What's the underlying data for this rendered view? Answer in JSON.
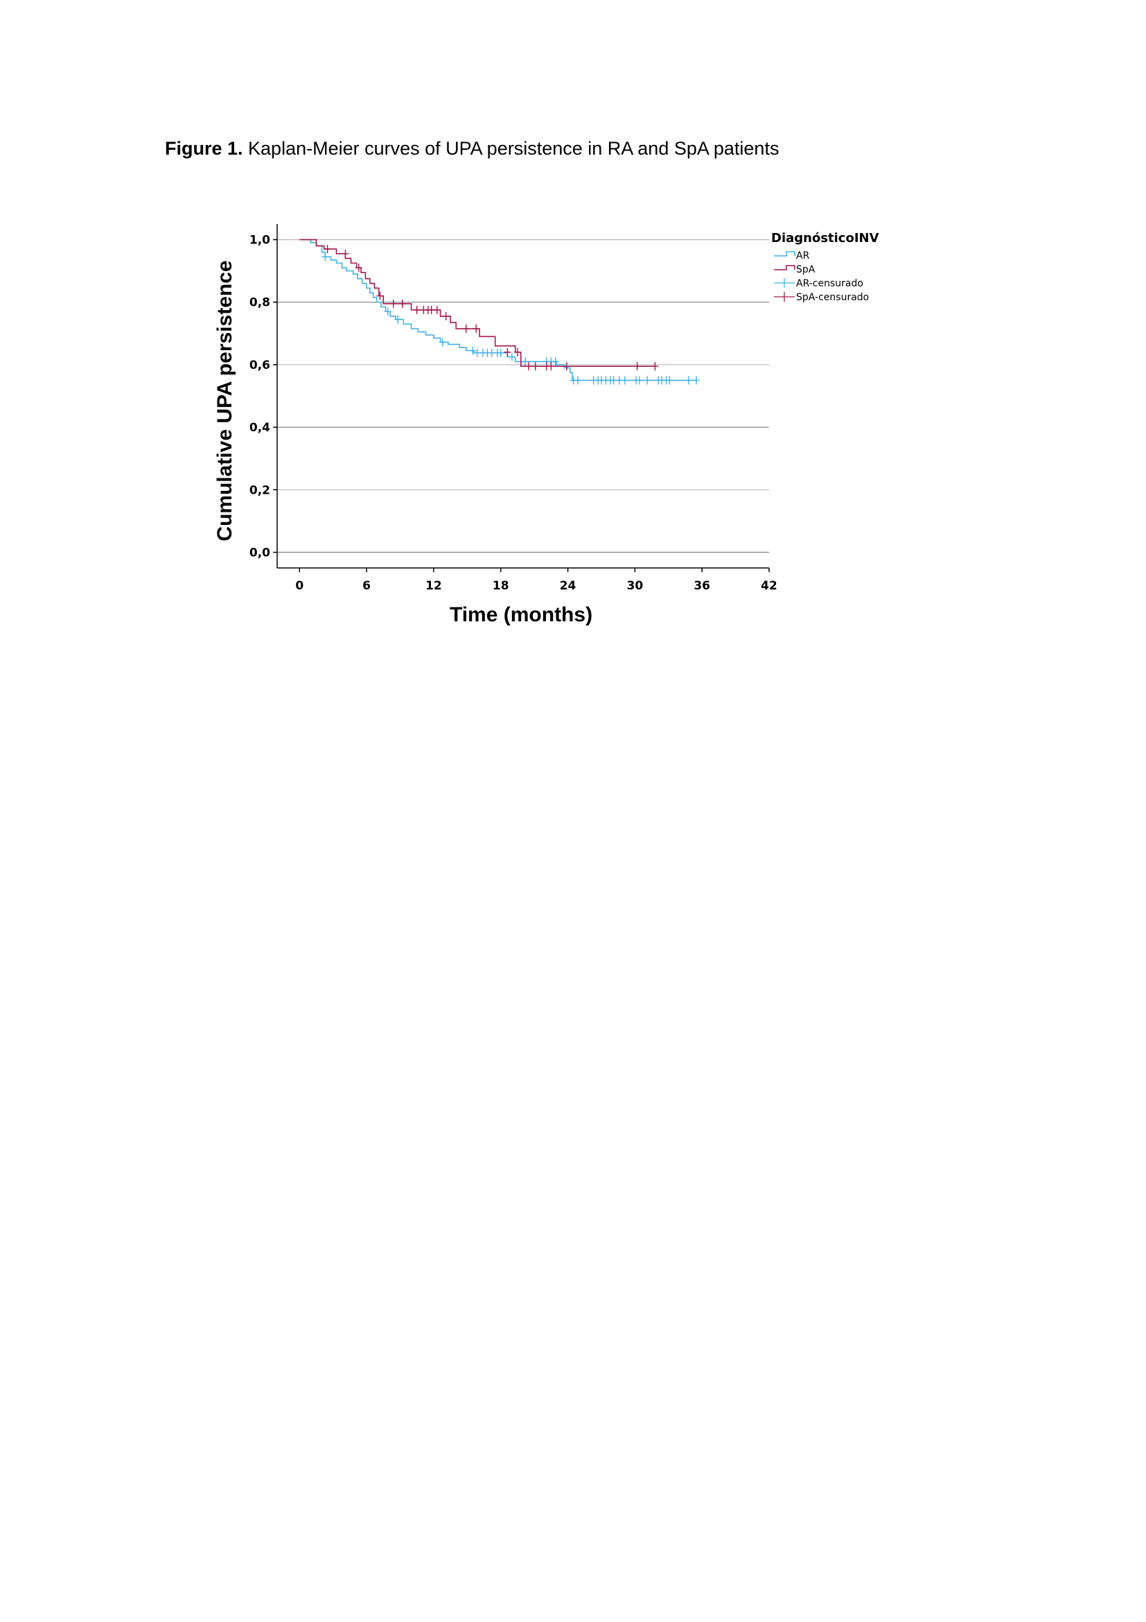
{
  "caption": {
    "label": "Figure 1.",
    "text": " Kaplan-Meier curves of UPA persistence in RA and SpA patients"
  },
  "chart_data": {
    "type": "line",
    "subtype": "kaplan-meier",
    "xlabel": "Time (months)",
    "ylabel": "Cumulative UPA persistence",
    "xlim": [
      -2,
      42
    ],
    "ylim": [
      -0.05,
      1.05
    ],
    "x_ticks": [
      0,
      6,
      12,
      18,
      24,
      30,
      36,
      42
    ],
    "x_tick_labels": [
      "0",
      "6",
      "12",
      "18",
      "24",
      "30",
      "36",
      "42"
    ],
    "y_ticks": [
      0.0,
      0.2,
      0.4,
      0.6,
      0.8,
      1.0
    ],
    "y_tick_labels": [
      "0,0",
      "0,2",
      "0,4",
      "0,6",
      "0,8",
      "1,0"
    ],
    "grid": "horizontal",
    "legend": {
      "title": "DiagnósticoINV",
      "placement": "top-right",
      "entries": [
        "AR",
        "SpA",
        "AR-censurado",
        "SpA-censurado"
      ]
    },
    "colors": {
      "AR": "#42b0e8",
      "SpA": "#a3174f"
    },
    "series": [
      {
        "name": "AR",
        "color": "#42b0e8",
        "steps": [
          [
            0,
            1.0
          ],
          [
            1.0,
            0.99
          ],
          [
            1.5,
            0.98
          ],
          [
            2.0,
            0.96
          ],
          [
            2.3,
            0.945
          ],
          [
            2.8,
            0.935
          ],
          [
            3.3,
            0.925
          ],
          [
            3.8,
            0.91
          ],
          [
            4.2,
            0.9
          ],
          [
            4.8,
            0.89
          ],
          [
            5.2,
            0.875
          ],
          [
            5.6,
            0.86
          ],
          [
            6.0,
            0.845
          ],
          [
            6.3,
            0.83
          ],
          [
            6.6,
            0.815
          ],
          [
            6.9,
            0.8
          ],
          [
            7.3,
            0.785
          ],
          [
            7.7,
            0.77
          ],
          [
            8.1,
            0.755
          ],
          [
            8.6,
            0.745
          ],
          [
            9.3,
            0.73
          ],
          [
            10.0,
            0.715
          ],
          [
            10.6,
            0.705
          ],
          [
            11.3,
            0.695
          ],
          [
            12.0,
            0.685
          ],
          [
            12.6,
            0.672
          ],
          [
            13.3,
            0.665
          ],
          [
            14.3,
            0.655
          ],
          [
            14.9,
            0.645
          ],
          [
            15.6,
            0.638
          ],
          [
            18.6,
            0.625
          ],
          [
            19.3,
            0.61
          ],
          [
            23.0,
            0.6
          ],
          [
            23.7,
            0.59
          ],
          [
            24.2,
            0.575
          ],
          [
            24.4,
            0.55
          ],
          [
            35.5,
            0.55
          ]
        ],
        "censored": [
          [
            2.3,
            0.945
          ],
          [
            7.9,
            0.77
          ],
          [
            8.8,
            0.745
          ],
          [
            12.8,
            0.672
          ],
          [
            15.5,
            0.645
          ],
          [
            15.9,
            0.638
          ],
          [
            16.4,
            0.638
          ],
          [
            16.8,
            0.638
          ],
          [
            17.2,
            0.638
          ],
          [
            17.7,
            0.638
          ],
          [
            18.0,
            0.638
          ],
          [
            19.0,
            0.625
          ],
          [
            20.2,
            0.61
          ],
          [
            22.1,
            0.61
          ],
          [
            22.5,
            0.61
          ],
          [
            22.9,
            0.61
          ],
          [
            24.5,
            0.55
          ],
          [
            24.9,
            0.55
          ],
          [
            26.3,
            0.55
          ],
          [
            26.7,
            0.55
          ],
          [
            27.0,
            0.55
          ],
          [
            27.4,
            0.55
          ],
          [
            27.8,
            0.55
          ],
          [
            28.1,
            0.55
          ],
          [
            28.6,
            0.55
          ],
          [
            29.1,
            0.55
          ],
          [
            30.1,
            0.55
          ],
          [
            30.4,
            0.55
          ],
          [
            31.1,
            0.55
          ],
          [
            32.1,
            0.55
          ],
          [
            32.4,
            0.55
          ],
          [
            32.8,
            0.55
          ],
          [
            33.1,
            0.55
          ],
          [
            34.8,
            0.55
          ],
          [
            35.5,
            0.55
          ]
        ]
      },
      {
        "name": "SpA",
        "color": "#a3174f",
        "steps": [
          [
            0,
            1.0
          ],
          [
            1.5,
            0.98
          ],
          [
            2.2,
            0.97
          ],
          [
            3.3,
            0.955
          ],
          [
            4.1,
            0.94
          ],
          [
            4.6,
            0.925
          ],
          [
            5.1,
            0.91
          ],
          [
            5.5,
            0.895
          ],
          [
            5.9,
            0.875
          ],
          [
            6.3,
            0.86
          ],
          [
            6.7,
            0.845
          ],
          [
            7.1,
            0.82
          ],
          [
            7.5,
            0.795
          ],
          [
            10.0,
            0.775
          ],
          [
            12.6,
            0.755
          ],
          [
            13.5,
            0.735
          ],
          [
            14.0,
            0.715
          ],
          [
            16.1,
            0.69
          ],
          [
            17.5,
            0.66
          ],
          [
            19.3,
            0.64
          ],
          [
            19.8,
            0.595
          ],
          [
            31.8,
            0.595
          ]
        ],
        "censored": [
          [
            2.5,
            0.97
          ],
          [
            4.1,
            0.955
          ],
          [
            5.3,
            0.91
          ],
          [
            7.2,
            0.82
          ],
          [
            8.4,
            0.795
          ],
          [
            9.2,
            0.795
          ],
          [
            10.5,
            0.775
          ],
          [
            11.1,
            0.775
          ],
          [
            11.5,
            0.775
          ],
          [
            11.8,
            0.775
          ],
          [
            12.3,
            0.775
          ],
          [
            13.1,
            0.755
          ],
          [
            14.9,
            0.715
          ],
          [
            15.8,
            0.715
          ],
          [
            18.6,
            0.64
          ],
          [
            19.5,
            0.64
          ],
          [
            20.5,
            0.595
          ],
          [
            21.1,
            0.595
          ],
          [
            22.1,
            0.595
          ],
          [
            22.5,
            0.595
          ],
          [
            23.9,
            0.595
          ],
          [
            30.2,
            0.595
          ],
          [
            31.8,
            0.595
          ]
        ]
      }
    ]
  }
}
